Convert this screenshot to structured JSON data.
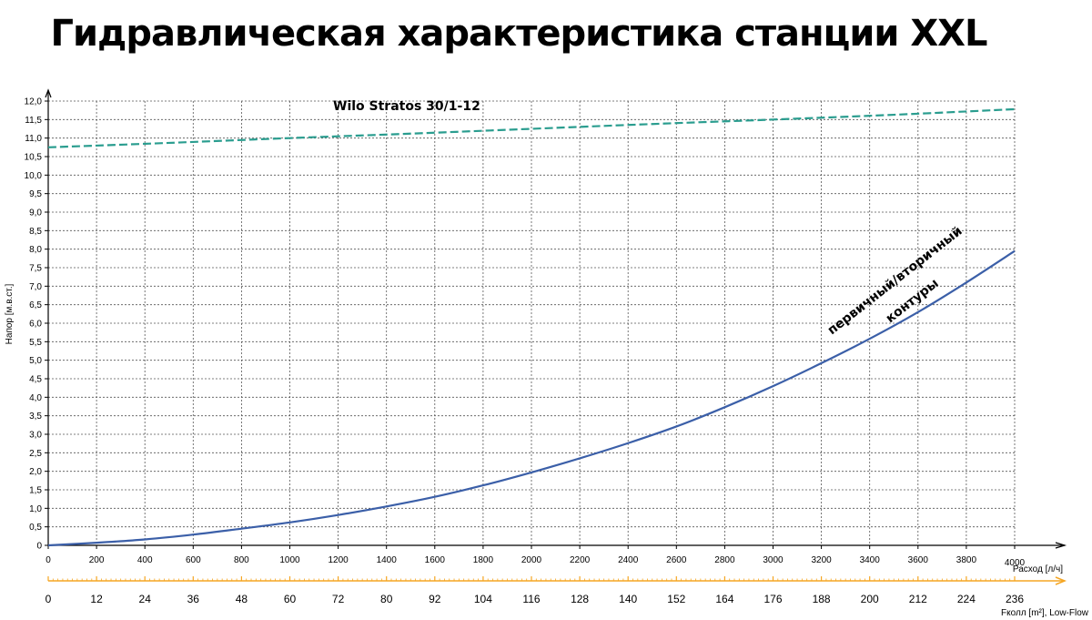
{
  "title": "Гидравлическая характеристика станции XXL",
  "chart_data": {
    "type": "line",
    "title": "Гидравлическая характеристика станции XXL",
    "ylabel": "Напор [м.в.ст.]",
    "xlabel": "Расход [л/ч]",
    "x2label": "Fколл [m²], Low-Flow",
    "xlim": [
      0,
      4000
    ],
    "ylim": [
      0,
      12
    ],
    "grid": true,
    "y_ticks": [
      "0",
      "0,5",
      "1,0",
      "1,5",
      "2,0",
      "2,5",
      "3,0",
      "3,5",
      "4,0",
      "4,5",
      "5,0",
      "5,5",
      "6,0",
      "6,5",
      "7,0",
      "7,5",
      "8,0",
      "8,5",
      "9,0",
      "9,5",
      "10,0",
      "10,5",
      "11,0",
      "11,5",
      "12,0"
    ],
    "x_ticks": [
      "0",
      "200",
      "400",
      "600",
      "800",
      "1000",
      "1200",
      "1400",
      "1600",
      "1800",
      "2000",
      "2200",
      "2400",
      "2600",
      "2800",
      "3000",
      "3200",
      "3400",
      "3600",
      "3800",
      "4000"
    ],
    "x2_ticks": [
      "0",
      "12",
      "24",
      "36",
      "48",
      "60",
      "72",
      "80",
      "92",
      "104",
      "116",
      "128",
      "140",
      "152",
      "164",
      "176",
      "188",
      "200",
      "212",
      "224",
      "236"
    ],
    "series": [
      {
        "name": "Wilo Stratos 30/1-12",
        "color": "#2a9d8f",
        "style": "dashed",
        "x": [
          0,
          500,
          1000,
          1500,
          2000,
          2500,
          3000,
          3500,
          4000
        ],
        "y": [
          10.75,
          10.87,
          11.0,
          11.12,
          11.25,
          11.38,
          11.5,
          11.63,
          11.78
        ]
      },
      {
        "name": "первичный/вторичный контуры",
        "color": "#3b5fa8",
        "style": "solid",
        "x": [
          0,
          200,
          400,
          600,
          800,
          1000,
          1200,
          1400,
          1600,
          1800,
          2000,
          2200,
          2400,
          2600,
          2800,
          3000,
          3200,
          3400,
          3600,
          3800,
          4000
        ],
        "y": [
          0,
          0.07,
          0.16,
          0.29,
          0.45,
          0.62,
          0.82,
          1.05,
          1.31,
          1.62,
          1.97,
          2.35,
          2.76,
          3.21,
          3.73,
          4.3,
          4.92,
          5.58,
          6.3,
          7.1,
          7.95
        ]
      }
    ],
    "annotations": [
      {
        "text": "Wilo Stratos 30/1-12"
      },
      {
        "text": "первичный/вторичный"
      },
      {
        "text": "контуры"
      }
    ]
  }
}
